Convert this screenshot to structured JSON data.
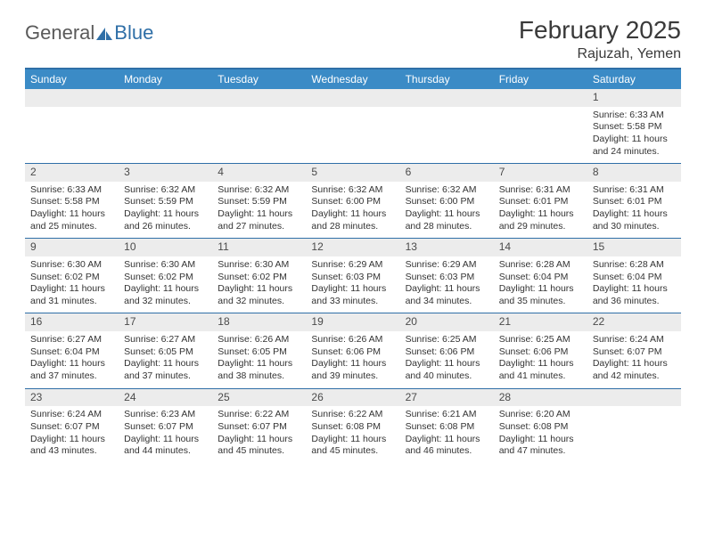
{
  "brand": {
    "part1": "General",
    "part2": "Blue"
  },
  "title": "February 2025",
  "location": "Rajuzah, Yemen",
  "colors": {
    "header_bg": "#3b8bc6",
    "header_text": "#ffffff",
    "rule": "#2f6fa7",
    "daynum_bg": "#ececec",
    "text": "#333333",
    "brand_gray": "#5a5a5a",
    "brand_blue": "#2f6fa7",
    "page_bg": "#ffffff"
  },
  "typography": {
    "title_fontsize": 28,
    "location_fontsize": 16,
    "weekday_fontsize": 12,
    "daynum_fontsize": 12,
    "body_fontsize": 10.5
  },
  "weekdays": [
    "Sunday",
    "Monday",
    "Tuesday",
    "Wednesday",
    "Thursday",
    "Friday",
    "Saturday"
  ],
  "weeks": [
    [
      null,
      null,
      null,
      null,
      null,
      null,
      {
        "n": "1",
        "sunrise": "6:33 AM",
        "sunset": "5:58 PM",
        "daylight": "11 hours and 24 minutes."
      }
    ],
    [
      {
        "n": "2",
        "sunrise": "6:33 AM",
        "sunset": "5:58 PM",
        "daylight": "11 hours and 25 minutes."
      },
      {
        "n": "3",
        "sunrise": "6:32 AM",
        "sunset": "5:59 PM",
        "daylight": "11 hours and 26 minutes."
      },
      {
        "n": "4",
        "sunrise": "6:32 AM",
        "sunset": "5:59 PM",
        "daylight": "11 hours and 27 minutes."
      },
      {
        "n": "5",
        "sunrise": "6:32 AM",
        "sunset": "6:00 PM",
        "daylight": "11 hours and 28 minutes."
      },
      {
        "n": "6",
        "sunrise": "6:32 AM",
        "sunset": "6:00 PM",
        "daylight": "11 hours and 28 minutes."
      },
      {
        "n": "7",
        "sunrise": "6:31 AM",
        "sunset": "6:01 PM",
        "daylight": "11 hours and 29 minutes."
      },
      {
        "n": "8",
        "sunrise": "6:31 AM",
        "sunset": "6:01 PM",
        "daylight": "11 hours and 30 minutes."
      }
    ],
    [
      {
        "n": "9",
        "sunrise": "6:30 AM",
        "sunset": "6:02 PM",
        "daylight": "11 hours and 31 minutes."
      },
      {
        "n": "10",
        "sunrise": "6:30 AM",
        "sunset": "6:02 PM",
        "daylight": "11 hours and 32 minutes."
      },
      {
        "n": "11",
        "sunrise": "6:30 AM",
        "sunset": "6:02 PM",
        "daylight": "11 hours and 32 minutes."
      },
      {
        "n": "12",
        "sunrise": "6:29 AM",
        "sunset": "6:03 PM",
        "daylight": "11 hours and 33 minutes."
      },
      {
        "n": "13",
        "sunrise": "6:29 AM",
        "sunset": "6:03 PM",
        "daylight": "11 hours and 34 minutes."
      },
      {
        "n": "14",
        "sunrise": "6:28 AM",
        "sunset": "6:04 PM",
        "daylight": "11 hours and 35 minutes."
      },
      {
        "n": "15",
        "sunrise": "6:28 AM",
        "sunset": "6:04 PM",
        "daylight": "11 hours and 36 minutes."
      }
    ],
    [
      {
        "n": "16",
        "sunrise": "6:27 AM",
        "sunset": "6:04 PM",
        "daylight": "11 hours and 37 minutes."
      },
      {
        "n": "17",
        "sunrise": "6:27 AM",
        "sunset": "6:05 PM",
        "daylight": "11 hours and 37 minutes."
      },
      {
        "n": "18",
        "sunrise": "6:26 AM",
        "sunset": "6:05 PM",
        "daylight": "11 hours and 38 minutes."
      },
      {
        "n": "19",
        "sunrise": "6:26 AM",
        "sunset": "6:06 PM",
        "daylight": "11 hours and 39 minutes."
      },
      {
        "n": "20",
        "sunrise": "6:25 AM",
        "sunset": "6:06 PM",
        "daylight": "11 hours and 40 minutes."
      },
      {
        "n": "21",
        "sunrise": "6:25 AM",
        "sunset": "6:06 PM",
        "daylight": "11 hours and 41 minutes."
      },
      {
        "n": "22",
        "sunrise": "6:24 AM",
        "sunset": "6:07 PM",
        "daylight": "11 hours and 42 minutes."
      }
    ],
    [
      {
        "n": "23",
        "sunrise": "6:24 AM",
        "sunset": "6:07 PM",
        "daylight": "11 hours and 43 minutes."
      },
      {
        "n": "24",
        "sunrise": "6:23 AM",
        "sunset": "6:07 PM",
        "daylight": "11 hours and 44 minutes."
      },
      {
        "n": "25",
        "sunrise": "6:22 AM",
        "sunset": "6:07 PM",
        "daylight": "11 hours and 45 minutes."
      },
      {
        "n": "26",
        "sunrise": "6:22 AM",
        "sunset": "6:08 PM",
        "daylight": "11 hours and 45 minutes."
      },
      {
        "n": "27",
        "sunrise": "6:21 AM",
        "sunset": "6:08 PM",
        "daylight": "11 hours and 46 minutes."
      },
      {
        "n": "28",
        "sunrise": "6:20 AM",
        "sunset": "6:08 PM",
        "daylight": "11 hours and 47 minutes."
      },
      null
    ]
  ],
  "labels": {
    "sunrise": "Sunrise:",
    "sunset": "Sunset:",
    "daylight": "Daylight:"
  }
}
